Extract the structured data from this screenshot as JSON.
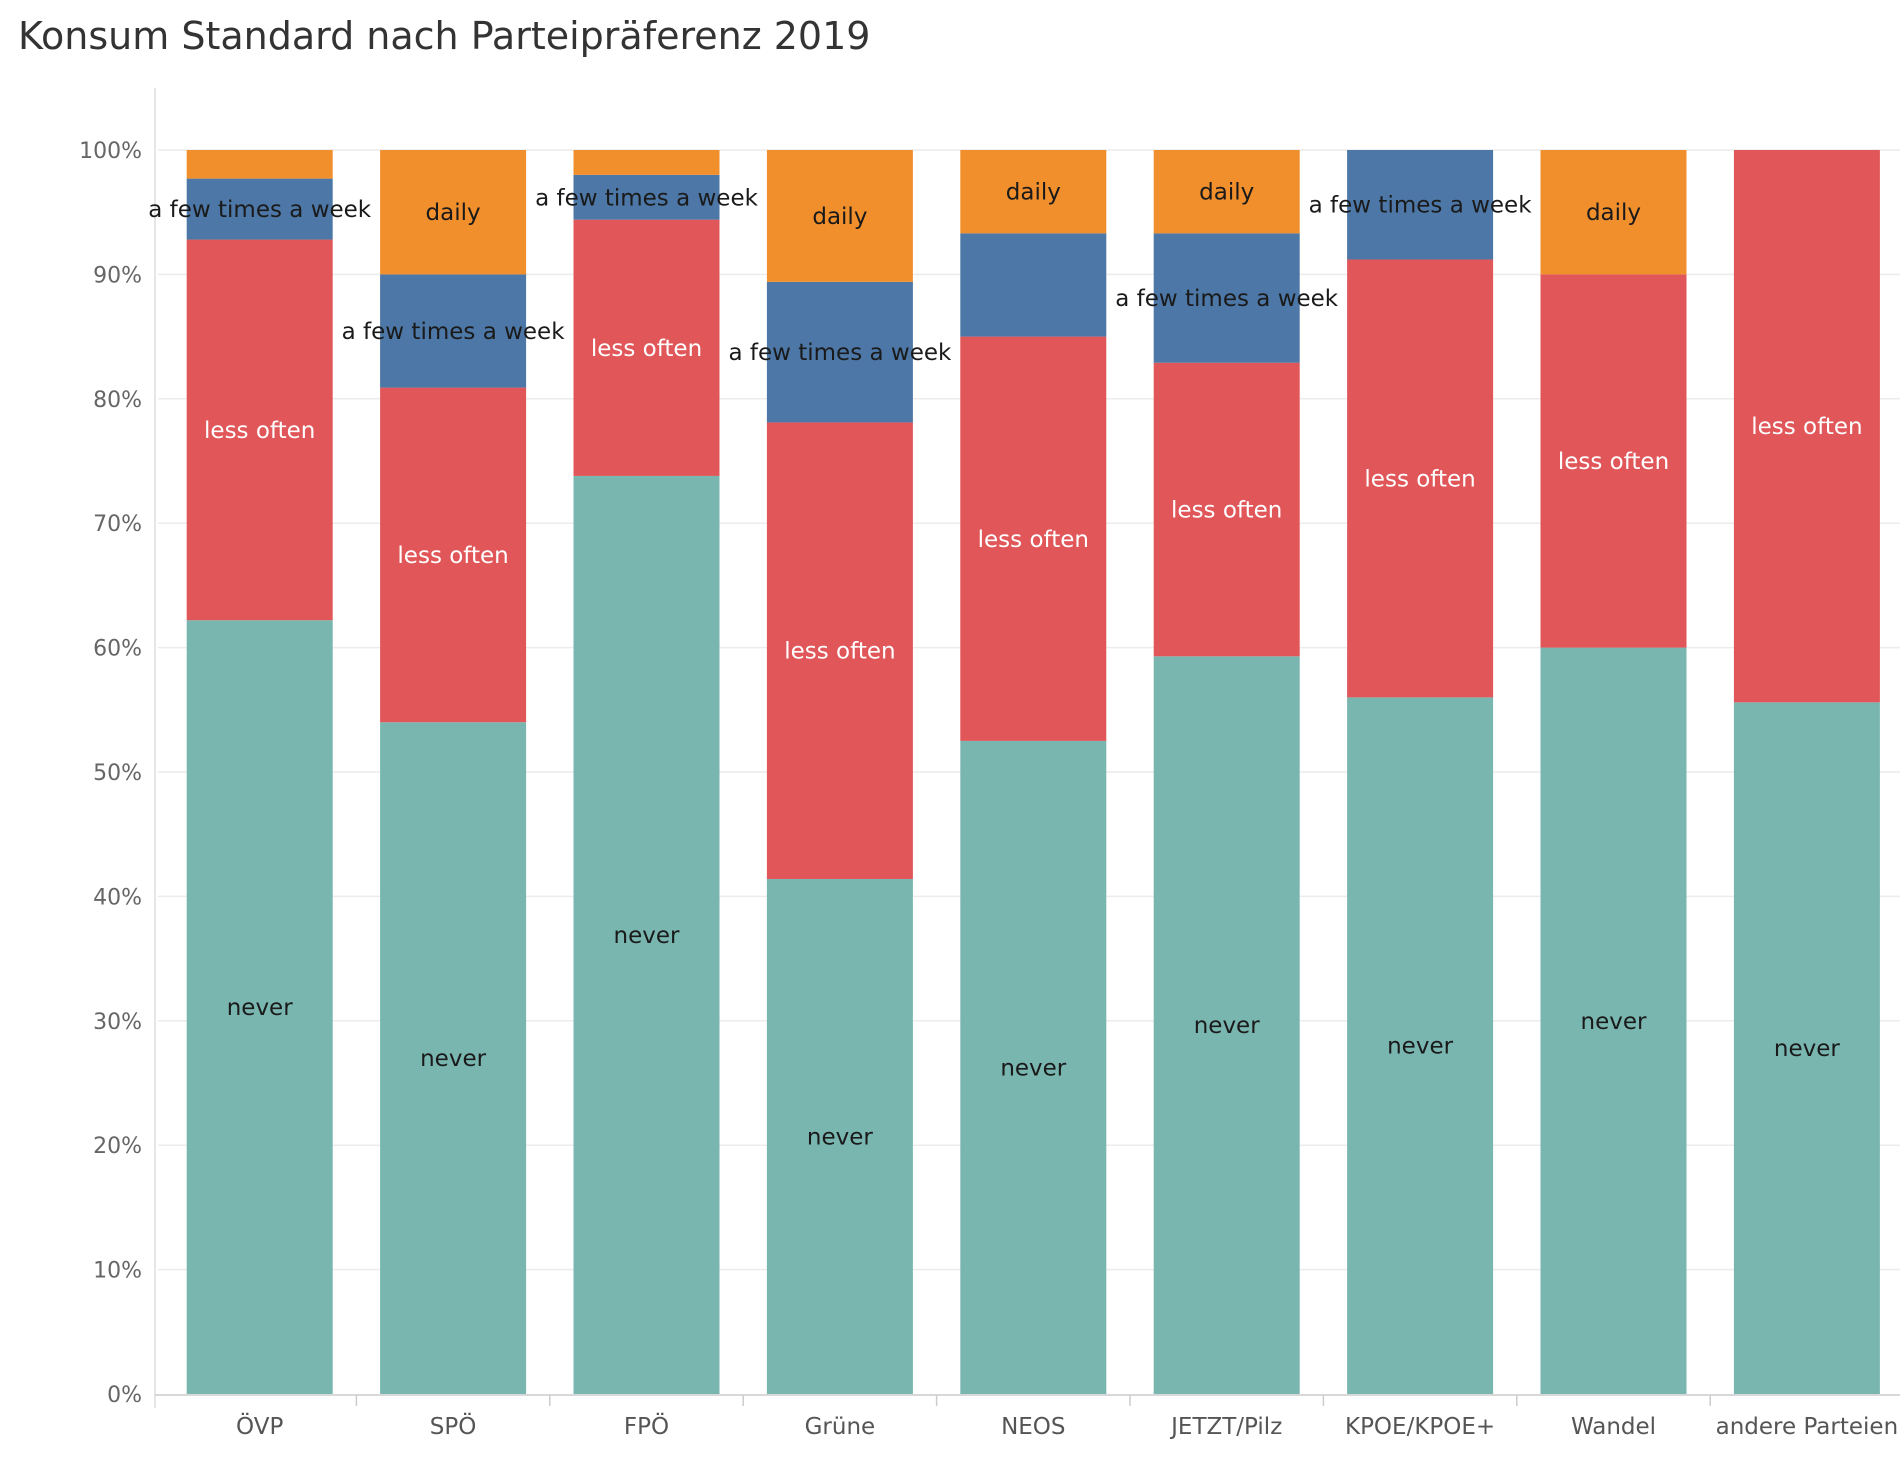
{
  "chart_data": {
    "type": "bar",
    "stacked": true,
    "normalized": true,
    "title": "Konsum Standard nach Parteipräferenz 2019",
    "xlabel": "",
    "ylabel": "",
    "ylim": [
      0,
      100
    ],
    "y_ticks": [
      "0%",
      "10%",
      "20%",
      "30%",
      "40%",
      "50%",
      "60%",
      "70%",
      "80%",
      "90%",
      "100%"
    ],
    "grid": true,
    "legend": "none",
    "categories": [
      "ÖVP",
      "SPÖ",
      "FPÖ",
      "Grüne",
      "NEOS",
      "JETZT/Pilz",
      "KPOE/KPOE+",
      "Wandel",
      "andere Parteien"
    ],
    "series": [
      {
        "name": "never",
        "color": "#79b6b0",
        "label_color": "#1a1a1a",
        "values": [
          62.2,
          54.0,
          73.8,
          41.4,
          52.5,
          59.3,
          56.0,
          60.0,
          55.6
        ]
      },
      {
        "name": "less often",
        "color": "#e05659",
        "label_color": "#ffffff",
        "values": [
          30.6,
          26.9,
          20.6,
          36.7,
          32.5,
          23.6,
          35.2,
          30.0,
          44.4
        ]
      },
      {
        "name": "a few times a week",
        "color": "#4c77a6",
        "label_color": "#1a1a1a",
        "values": [
          4.9,
          9.1,
          3.6,
          11.3,
          8.3,
          10.4,
          8.8,
          0,
          0
        ]
      },
      {
        "name": "daily",
        "color": "#f28f2d",
        "label_color": "#1a1a1a",
        "values": [
          2.3,
          10.0,
          2.0,
          10.6,
          6.7,
          6.7,
          0,
          10.0,
          0
        ]
      }
    ],
    "segment_labels": [
      [
        "never",
        "less often",
        "a few times a week",
        ""
      ],
      [
        "never",
        "less often",
        "a few times a week",
        "daily"
      ],
      [
        "never",
        "less often",
        "a few times a week",
        ""
      ],
      [
        "never",
        "less often",
        "a few times a week",
        "daily"
      ],
      [
        "never",
        "less often",
        "",
        "daily"
      ],
      [
        "never",
        "less often",
        "a few times a week",
        "daily"
      ],
      [
        "never",
        "less often",
        "a few times a week",
        ""
      ],
      [
        "never",
        "less often",
        "",
        "daily"
      ],
      [
        "never",
        "less often",
        "",
        ""
      ]
    ]
  }
}
